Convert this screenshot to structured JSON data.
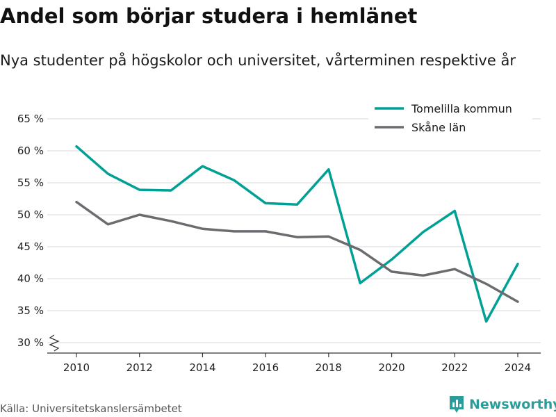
{
  "header": {
    "title": "Andel som börjar studera i hemlänet",
    "subtitle": "Nya studenter på högskolor och universitet, vårterminen respektive år"
  },
  "footer": {
    "source": "Källa: Universitetskanslersämbetet",
    "brand": "Newsworthy"
  },
  "colors": {
    "tomelilla": "#00a095",
    "skane": "#6b6b70",
    "grid": "#d9d9d9",
    "brand": "#2a9d9b"
  },
  "icons": {
    "brand_logo": "bar-chart-icon",
    "axis_break": "axis-break-icon"
  },
  "chart_data": {
    "type": "line",
    "title": "Andel som börjar studera i hemlänet",
    "subtitle": "Nya studenter på högskolor och universitet, vårterminen respektive år",
    "xlabel": "",
    "ylabel": "",
    "x": [
      2010,
      2011,
      2012,
      2013,
      2014,
      2015,
      2016,
      2017,
      2018,
      2019,
      2020,
      2021,
      2022,
      2023,
      2024
    ],
    "x_ticks": [
      2010,
      2012,
      2014,
      2016,
      2018,
      2020,
      2022,
      2024
    ],
    "x_tick_labels": [
      "2010",
      "2012",
      "2014",
      "2016",
      "2018",
      "2020",
      "2022",
      "2024"
    ],
    "ylim": [
      30,
      65
    ],
    "y_ticks": [
      30,
      35,
      40,
      45,
      50,
      55,
      60,
      65
    ],
    "y_tick_labels": [
      "30 %",
      "35 %",
      "40 %",
      "45 %",
      "50 %",
      "55 %",
      "60 %",
      "65 %"
    ],
    "y_axis_break": true,
    "grid": true,
    "legend_position": "top-right",
    "series": [
      {
        "name": "Tomelilla kommun",
        "color": "#00a095",
        "values": [
          60.7,
          56.4,
          53.9,
          53.8,
          57.6,
          55.4,
          51.8,
          51.6,
          57.1,
          39.3,
          43.0,
          47.3,
          50.6,
          33.3,
          42.3
        ]
      },
      {
        "name": "Skåne län",
        "color": "#6b6b70",
        "values": [
          52.0,
          48.5,
          50.0,
          49.0,
          47.8,
          47.4,
          47.4,
          46.5,
          46.6,
          44.5,
          41.1,
          40.5,
          41.5,
          39.2,
          36.4
        ]
      }
    ]
  }
}
